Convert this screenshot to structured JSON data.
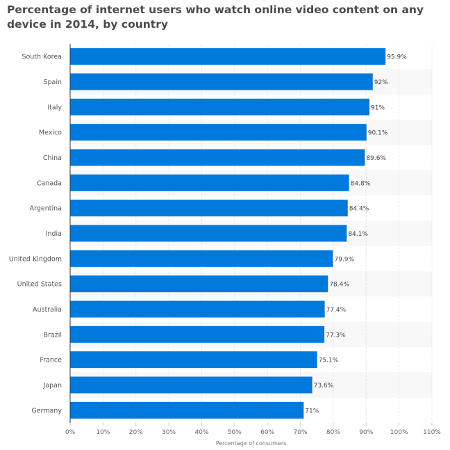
{
  "chart_data": {
    "type": "bar",
    "orientation": "horizontal",
    "title": "Percentage of internet users who watch online video content on any device in 2014, by country",
    "xlabel": "Percentage of consumers",
    "ylabel": "",
    "xlim": [
      0,
      110
    ],
    "x_ticks": [
      0,
      10,
      20,
      30,
      40,
      50,
      60,
      70,
      80,
      90,
      100,
      110
    ],
    "x_tick_suffix": "%",
    "grid": true,
    "bar_color": "#0079dc",
    "categories": [
      "South Korea",
      "Spain",
      "Italy",
      "Mexico",
      "China",
      "Canada",
      "Argentina",
      "India",
      "United Kingdom",
      "United States",
      "Australia",
      "Brazil",
      "France",
      "Japan",
      "Germany"
    ],
    "values": [
      95.9,
      92,
      91,
      90.1,
      89.6,
      84.8,
      84.4,
      84.1,
      79.9,
      78.4,
      77.4,
      77.3,
      75.1,
      73.6,
      71
    ],
    "value_labels": [
      "95.9%",
      "92%",
      "91%",
      "90.1%",
      "89.6%",
      "84.8%",
      "84.4%",
      "84.1%",
      "79.9%",
      "78.4%",
      "77.4%",
      "77.3%",
      "75.1%",
      "73.6%",
      "71%"
    ]
  }
}
